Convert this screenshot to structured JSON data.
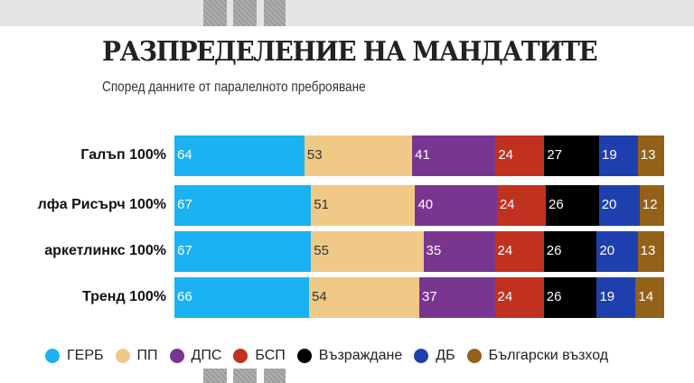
{
  "chart_data": {
    "type": "bar",
    "stacked": true,
    "orientation": "horizontal",
    "title": "РАЗПРЕДЕЛЕНИЕ НА МАНДАТИТЕ",
    "subtitle": "Според данните от паралелното преброяване",
    "categories": [
      "Галъп 100%",
      "лфа Рисърч 100%",
      "аркетлинкс 100%",
      "Тренд 100%"
    ],
    "series": [
      {
        "name": "ГЕРБ",
        "color": "#1ab2f0",
        "values": [
          64,
          67,
          67,
          66
        ]
      },
      {
        "name": "ПП",
        "color": "#f0c987",
        "values": [
          53,
          51,
          55,
          54
        ]
      },
      {
        "name": "ДПС",
        "color": "#7a3591",
        "values": [
          41,
          40,
          35,
          37
        ]
      },
      {
        "name": "БСП",
        "color": "#c0311f",
        "values": [
          24,
          24,
          24,
          24
        ]
      },
      {
        "name": "Възраждане",
        "color": "#000000",
        "values": [
          27,
          26,
          26,
          26
        ]
      },
      {
        "name": "ДБ",
        "color": "#1f3fae",
        "values": [
          19,
          20,
          20,
          19
        ]
      },
      {
        "name": "Български възход",
        "color": "#94611a",
        "values": [
          13,
          12,
          13,
          14
        ]
      }
    ],
    "legend": "bottom",
    "grid": false
  }
}
